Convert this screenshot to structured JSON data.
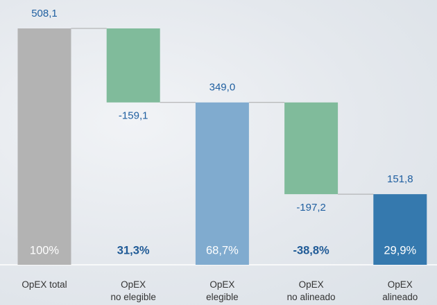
{
  "chart_data": {
    "type": "waterfall",
    "categories": [
      "OpEX total",
      "OpEX\nno elegible",
      "OpEX\nelegible",
      "OpEX\nno alineado",
      "OpEX\nalineado"
    ],
    "values": [
      508.1,
      -159.1,
      349.0,
      -197.2,
      151.8
    ],
    "value_labels": [
      "508,1",
      "-159,1",
      "349,0",
      "-197,2",
      "151,8"
    ],
    "measures": [
      "absolute",
      "relative",
      "total",
      "relative",
      "total"
    ],
    "colors": [
      "#b3b3b3",
      "#80bb9b",
      "#80abcf",
      "#80bb9b",
      "#3579ae"
    ],
    "share_labels": [
      "100%",
      "31,3%",
      "68,7%",
      "-38,8%",
      "29,9%"
    ],
    "share_label_colors": [
      "#ffffff",
      "#1f5a96",
      "#ffffff",
      "#1f5a96",
      "#ffffff"
    ],
    "ylim": [
      0,
      508.1
    ]
  }
}
